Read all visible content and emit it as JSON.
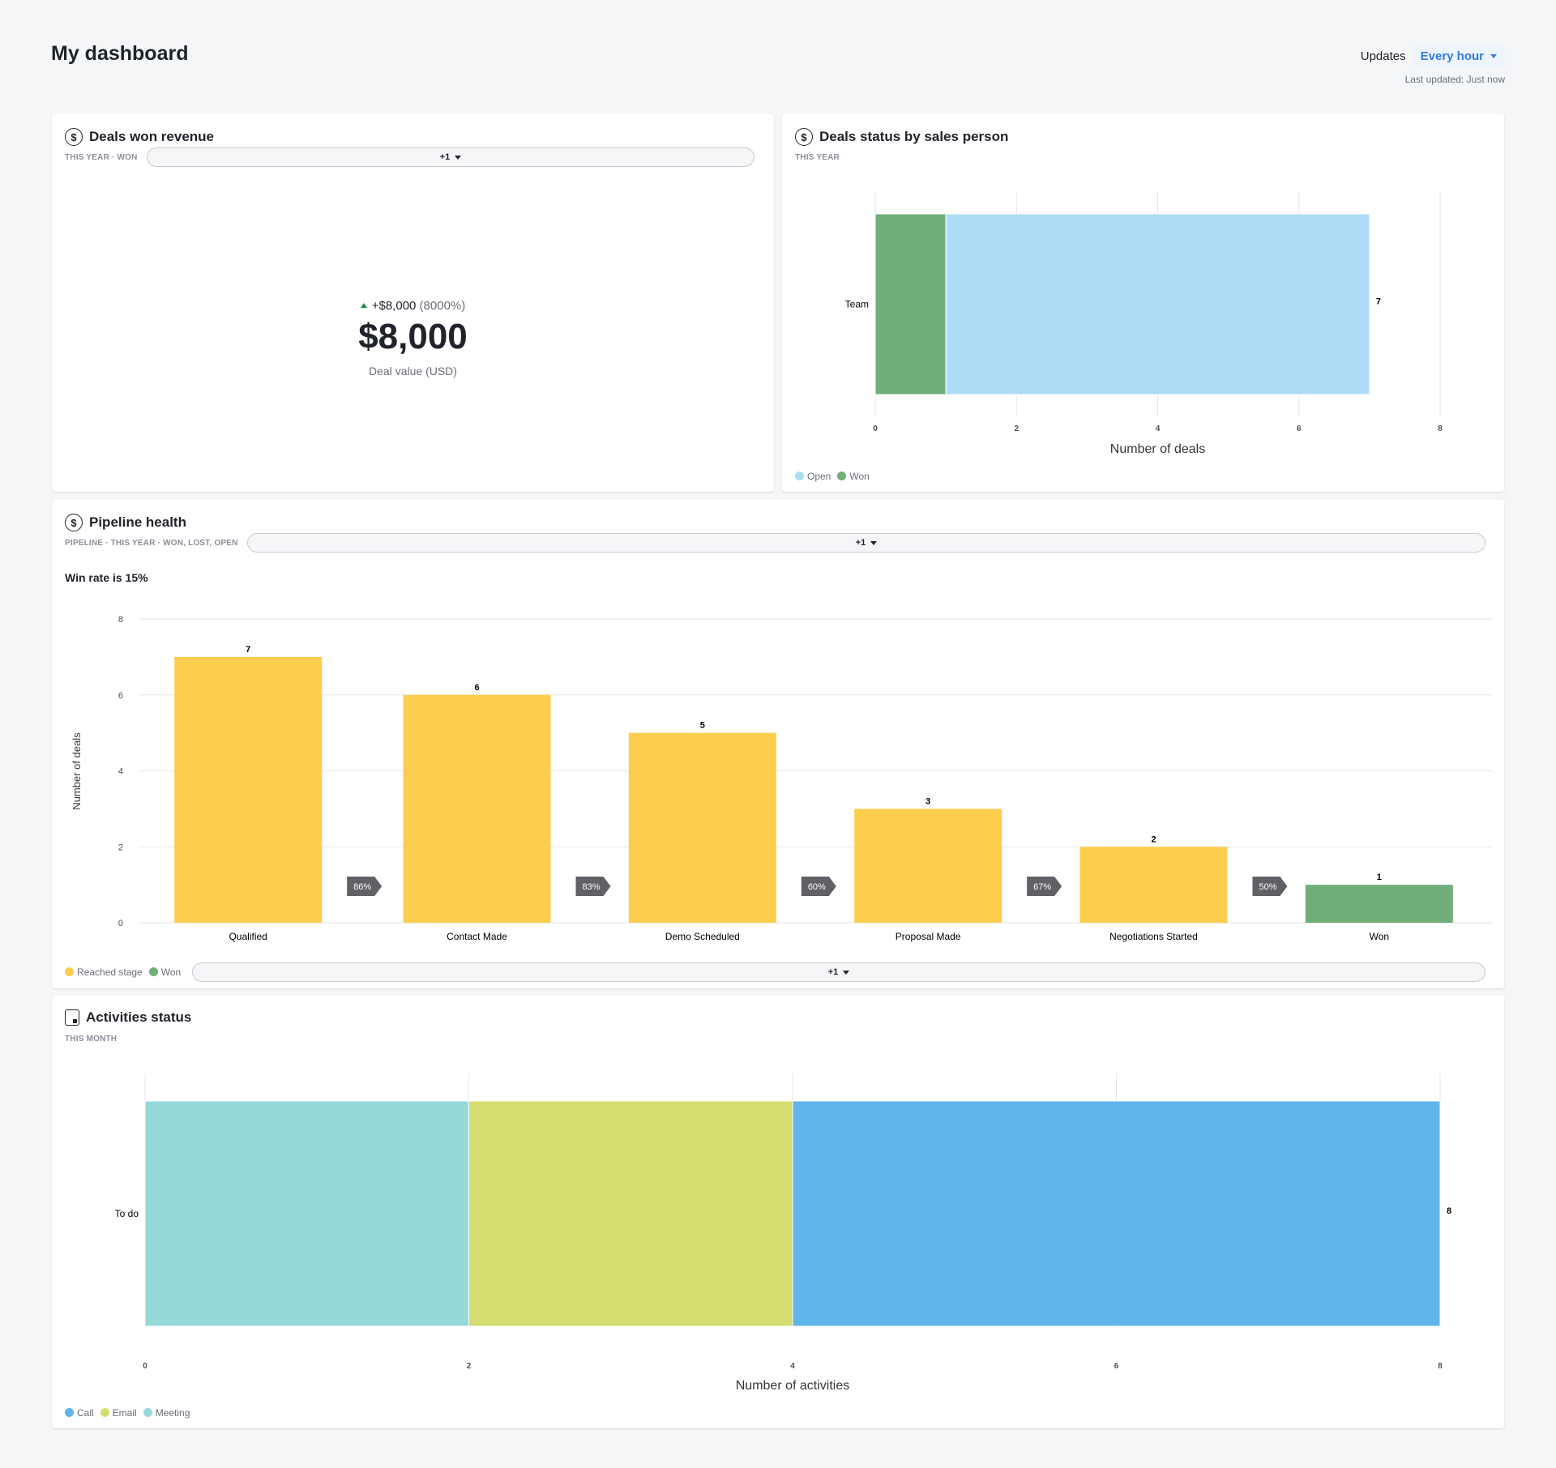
{
  "header": {
    "title": "My dashboard",
    "updates_label": "Updates",
    "updates_value": "Every hour",
    "last_updated": "Last updated: Just now"
  },
  "colors": {
    "open": "#aedbf5",
    "won": "#72ae79",
    "reached": "#fdcd4d",
    "call": "#60b5ea",
    "email": "#d4de70",
    "meeting": "#95d9d9"
  },
  "deals_won": {
    "title": "Deals won revenue",
    "filters": [
      "THIS YEAR",
      "WON"
    ],
    "more_filters": "+1",
    "delta": "+$8,000",
    "delta_pct": "(8000%)",
    "value": "$8,000",
    "caption": "Deal value (USD)",
    "icon": "dollar-circle-icon"
  },
  "deals_status": {
    "title": "Deals status by sales person",
    "filters": [
      "THIS YEAR"
    ],
    "icon": "dollar-circle-icon",
    "chart_data": {
      "type": "bar",
      "orientation": "horizontal",
      "stacked": true,
      "categories": [
        "Team"
      ],
      "series": [
        {
          "name": "Won",
          "values": [
            1
          ]
        },
        {
          "name": "Open",
          "values": [
            6
          ]
        }
      ],
      "totals": [
        7
      ],
      "xlabel": "Number of deals",
      "xlim": [
        0,
        8
      ],
      "xticks": [
        "0",
        "2",
        "4",
        "6",
        "8"
      ],
      "grid": true,
      "legend": [
        "Open",
        "Won"
      ],
      "legend_position": "bottom-left"
    }
  },
  "pipeline": {
    "title": "Pipeline health",
    "filters": [
      "PIPELINE",
      "THIS YEAR",
      "WON, LOST, OPEN"
    ],
    "more_filters": "+1",
    "win_rate": "Win rate is 15%",
    "icon": "dollar-circle-icon",
    "legend_more": "+1",
    "chart_data": {
      "type": "bar",
      "categories": [
        "Qualified",
        "Contact Made",
        "Demo Scheduled",
        "Proposal Made",
        "Negotiations Started",
        "Won"
      ],
      "values": [
        7,
        6,
        5,
        3,
        2,
        1
      ],
      "series_of_bar": [
        "Reached stage",
        "Reached stage",
        "Reached stage",
        "Reached stage",
        "Reached stage",
        "Won"
      ],
      "conversions": [
        "86%",
        "83%",
        "60%",
        "67%",
        "50%"
      ],
      "ylabel": "Number of deals",
      "ylim": [
        0,
        8
      ],
      "yticks": [
        "0",
        "2",
        "4",
        "6",
        "8"
      ],
      "grid": true,
      "legend": [
        "Reached stage",
        "Won"
      ],
      "legend_position": "bottom-left"
    }
  },
  "activities": {
    "title": "Activities status",
    "filters": [
      "THIS MONTH"
    ],
    "icon": "calendar-icon",
    "chart_data": {
      "type": "bar",
      "orientation": "horizontal",
      "stacked": true,
      "categories": [
        "To do"
      ],
      "series": [
        {
          "name": "Meeting",
          "values": [
            2
          ]
        },
        {
          "name": "Email",
          "values": [
            2
          ]
        },
        {
          "name": "Call",
          "values": [
            4
          ]
        }
      ],
      "totals": [
        8
      ],
      "xlabel": "Number of activities",
      "xlim": [
        0,
        8
      ],
      "xticks": [
        "0",
        "2",
        "4",
        "6",
        "8"
      ],
      "grid": true,
      "legend": [
        "Call",
        "Email",
        "Meeting"
      ],
      "legend_position": "bottom-left"
    }
  }
}
